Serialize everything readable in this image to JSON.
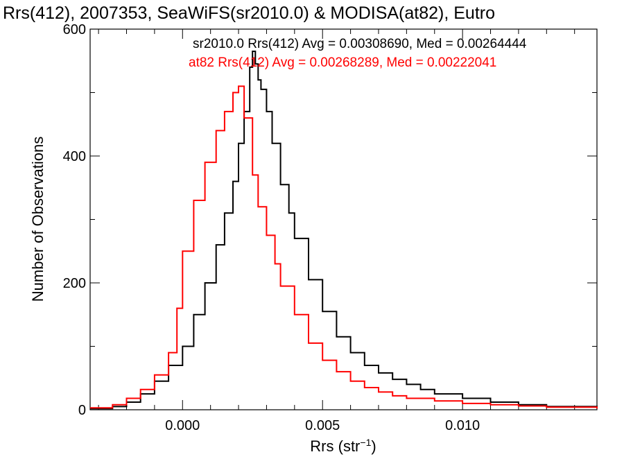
{
  "chart_data": {
    "type": "line",
    "title": "Rrs(412), 2007353, SeaWiFS(sr2010.0) & MODISA(at82), Eutro",
    "xlabel": "Rrs (str",
    "xlabel_sup": "−1",
    "xlabel_end": ")",
    "ylabel": "Number of Observations",
    "xlim": [
      -0.0033,
      0.0148
    ],
    "ylim": [
      0,
      600
    ],
    "x_ticks": [
      0.0,
      0.005,
      0.01
    ],
    "x_tick_labels": [
      "0.000",
      "0.005",
      "0.010"
    ],
    "y_ticks": [
      0,
      200,
      400,
      600
    ],
    "y_tick_labels": [
      "0",
      "200",
      "400",
      "600"
    ],
    "grid": false,
    "legend_placement": "top-right",
    "series": [
      {
        "name": "sr2010.0 Rrs(412) Avg = 0.00308690, Med = 0.00264444",
        "color": "#000000",
        "x": [
          -0.0033,
          -0.0025,
          -0.002,
          -0.0015,
          -0.001,
          -0.0005,
          0.0,
          0.0004,
          0.0008,
          0.0012,
          0.0015,
          0.0018,
          0.002,
          0.0022,
          0.0024,
          0.0025,
          0.0026,
          0.0027,
          0.0028,
          0.003,
          0.0032,
          0.0035,
          0.0038,
          0.004,
          0.0045,
          0.005,
          0.0055,
          0.006,
          0.0065,
          0.007,
          0.0075,
          0.008,
          0.0085,
          0.009,
          0.01,
          0.011,
          0.012,
          0.013,
          0.0148
        ],
        "y": [
          2,
          5,
          12,
          25,
          45,
          70,
          100,
          150,
          200,
          260,
          310,
          360,
          420,
          470,
          540,
          565,
          545,
          520,
          505,
          470,
          420,
          355,
          310,
          270,
          205,
          155,
          115,
          90,
          70,
          58,
          48,
          40,
          32,
          25,
          18,
          12,
          8,
          5,
          3
        ]
      },
      {
        "name": "at82 Rrs(412) Avg = 0.00268289, Med = 0.00222041",
        "color": "#ff0000",
        "x": [
          -0.0033,
          -0.0025,
          -0.002,
          -0.0015,
          -0.001,
          -0.0005,
          -0.0002,
          0.0,
          0.0004,
          0.0008,
          0.0012,
          0.0015,
          0.0018,
          0.002,
          0.0022,
          0.0025,
          0.0027,
          0.003,
          0.0033,
          0.0035,
          0.004,
          0.0045,
          0.005,
          0.0055,
          0.006,
          0.0065,
          0.007,
          0.0075,
          0.008,
          0.009,
          0.01,
          0.011,
          0.012,
          0.013,
          0.0148
        ],
        "y": [
          3,
          8,
          18,
          32,
          55,
          90,
          160,
          250,
          330,
          390,
          440,
          470,
          500,
          510,
          460,
          370,
          320,
          275,
          230,
          195,
          150,
          105,
          78,
          60,
          45,
          35,
          28,
          22,
          18,
          14,
          10,
          8,
          6,
          4,
          2
        ]
      }
    ]
  }
}
